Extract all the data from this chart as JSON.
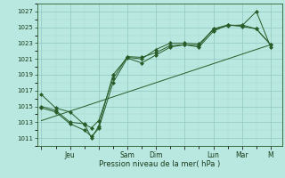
{
  "background_color": "#b8e8e0",
  "grid_major_color": "#90c8c0",
  "grid_minor_color": "#a8d8d0",
  "line_color": "#2a5c2a",
  "marker_color": "#2a5c2a",
  "ylabel_ticks": [
    1011,
    1013,
    1015,
    1017,
    1019,
    1021,
    1023,
    1025,
    1027
  ],
  "ylim": [
    1010.0,
    1028.0
  ],
  "xtick_labels": [
    "",
    "Jeu",
    "",
    "Sam",
    "Dim",
    "",
    "Lun",
    "Mar",
    "M"
  ],
  "xtick_positions": [
    0,
    2,
    4,
    6,
    8,
    10,
    12,
    14,
    16
  ],
  "xlim": [
    -0.3,
    16.8
  ],
  "xlabel": "Pression niveau de la mer( hPa )",
  "series1_x": [
    0,
    1,
    2,
    3,
    3.5,
    4,
    5,
    6,
    7,
    8,
    9,
    10,
    11,
    12,
    13,
    14,
    15,
    16
  ],
  "series1_y": [
    1016.5,
    1014.8,
    1014.3,
    1012.7,
    1012.3,
    1013.2,
    1018.5,
    1021.3,
    1021.2,
    1021.8,
    1022.7,
    1022.8,
    1022.5,
    1024.5,
    1025.3,
    1025.2,
    1027.0,
    1022.5
  ],
  "series2_x": [
    0,
    1,
    2,
    3,
    3.5,
    4,
    5,
    6,
    7,
    8,
    9,
    10,
    11,
    12,
    13,
    14,
    15,
    16
  ],
  "series2_y": [
    1014.8,
    1014.3,
    1012.8,
    1012.0,
    1011.2,
    1012.2,
    1018.0,
    1021.1,
    1020.5,
    1021.5,
    1022.5,
    1022.8,
    1022.7,
    1024.8,
    1025.3,
    1025.1,
    1024.8,
    1022.8
  ],
  "series3_x": [
    0,
    16
  ],
  "series3_y": [
    1013.2,
    1022.8
  ],
  "series4_x": [
    0,
    1,
    2,
    3,
    3.5,
    4,
    5,
    6,
    7,
    8,
    9,
    10,
    11,
    12,
    13,
    14,
    15,
    16
  ],
  "series4_y": [
    1015.0,
    1014.5,
    1013.0,
    1012.8,
    1011.0,
    1012.5,
    1019.0,
    1021.2,
    1021.0,
    1022.2,
    1023.0,
    1023.0,
    1022.9,
    1024.7,
    1025.2,
    1025.3,
    1024.8,
    1022.8
  ]
}
